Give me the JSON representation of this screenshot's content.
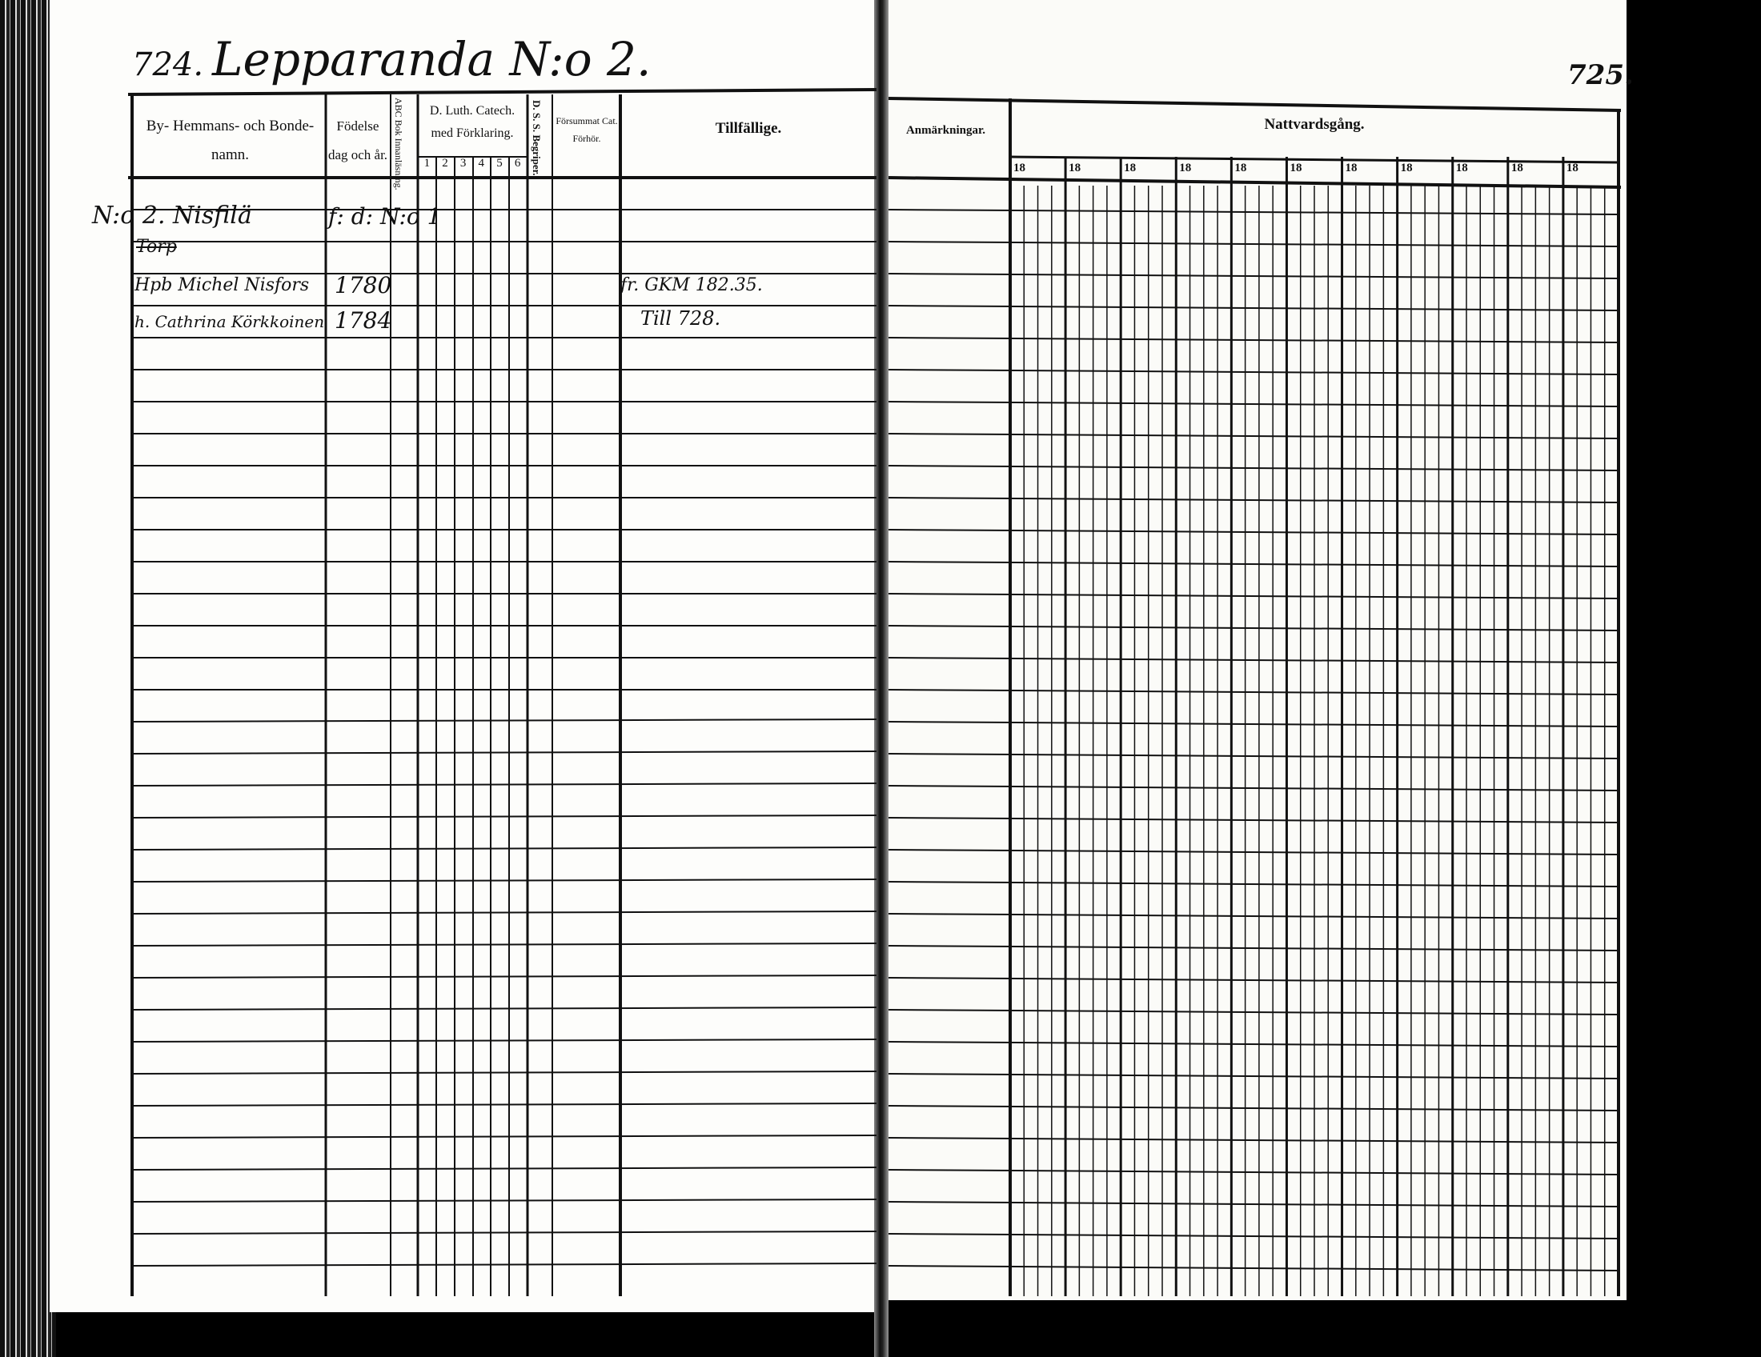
{
  "left_page": {
    "page_number": "724.",
    "title": "Lepparanda N:o 2.",
    "headers": {
      "name": "By- Hemmans- och Bonde-namn.",
      "birth": "Födelse dag och år.",
      "abc": "ABC Bok Innanläsning.",
      "catech": "D. Luth. Catech. med Förklaring.",
      "catech_numbers": [
        "1",
        "2",
        "3",
        "4",
        "5",
        "6"
      ],
      "ds": "D. S. S. Begriper.",
      "forsummat": "Försummat Cat. Förhör.",
      "tillfallige": "Tillfällige."
    },
    "entries": [
      {
        "name": "N:o 2. Nisfilä",
        "birth": "f: d: N:o 1"
      },
      {
        "name": "Torp",
        "struck": true
      },
      {
        "name": "Hpb Michel Nisfors",
        "birth": "1780",
        "tillfallige": "fr. GKM 182.35."
      },
      {
        "name": "h. Cathrina Körkkoinen",
        "birth": "1784",
        "tillfallige": "Till 728."
      }
    ]
  },
  "right_page": {
    "page_number": "725.",
    "headers": {
      "anmarkningar": "Anmärkningar.",
      "nattvardsgang": "Nattvardsgång.",
      "year_prefixes": [
        "18",
        "18",
        "18",
        "18",
        "18",
        "18",
        "18",
        "18",
        "18",
        "18",
        "18"
      ]
    }
  }
}
